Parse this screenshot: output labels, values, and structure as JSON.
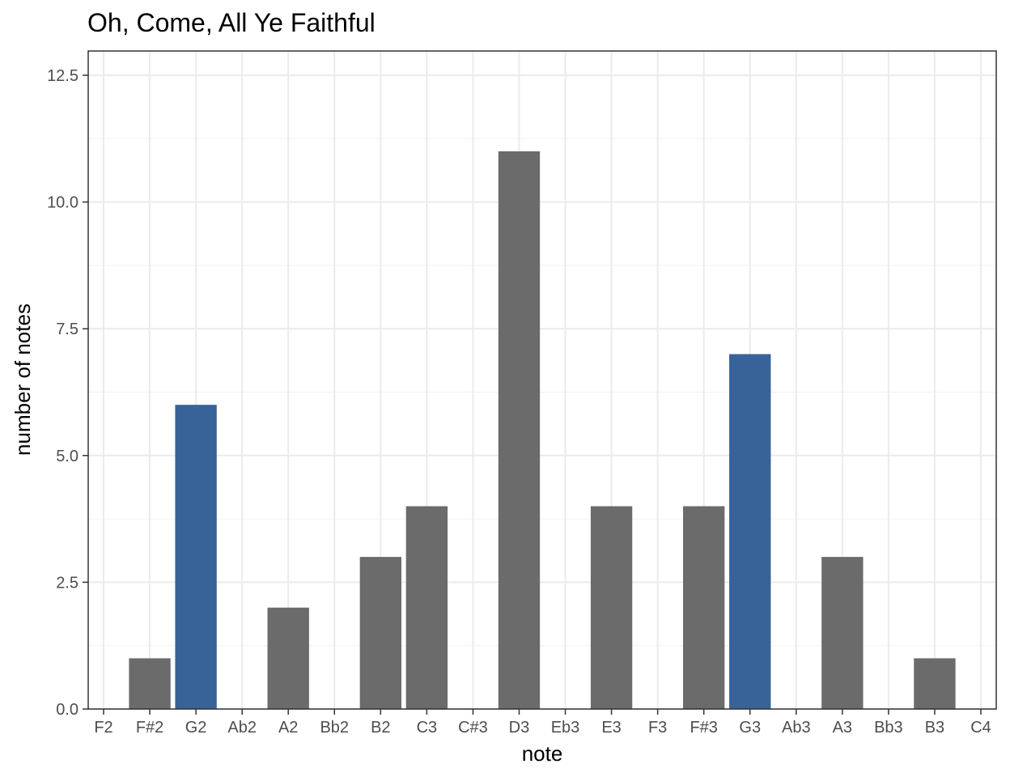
{
  "chart_data": {
    "type": "bar",
    "title": "Oh, Come, All Ye Faithful",
    "xlabel": "note",
    "ylabel": "number of notes",
    "categories": [
      "F2",
      "F#2",
      "G2",
      "Ab2",
      "A2",
      "Bb2",
      "B2",
      "C3",
      "C#3",
      "D3",
      "Eb3",
      "E3",
      "F3",
      "F#3",
      "G3",
      "Ab3",
      "A3",
      "Bb3",
      "B3",
      "C4"
    ],
    "values": [
      0,
      1,
      6,
      0,
      2,
      0,
      3,
      4,
      0,
      11,
      0,
      4,
      0,
      4,
      7,
      0,
      3,
      0,
      1,
      0
    ],
    "highlighted": [
      "G2",
      "G3"
    ],
    "colors": {
      "default": "#6b6b6b",
      "highlight": "#376399"
    },
    "ylim": [
      0,
      12.5
    ],
    "yticks": [
      "0.0",
      "2.5",
      "5.0",
      "7.5",
      "10.0",
      "12.5"
    ],
    "ytick_values": [
      0,
      2.5,
      5,
      7.5,
      10,
      12.5
    ],
    "grid": true,
    "legend": "none"
  }
}
